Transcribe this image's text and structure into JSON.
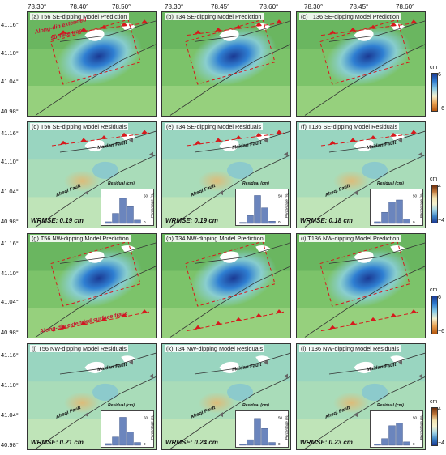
{
  "axes": {
    "lon_ticks": [
      "78.30°",
      "78.40°",
      "78.50°",
      "78.30°",
      "78.45°",
      "78.60°",
      "78.30°",
      "78.45°",
      "78.60°"
    ],
    "lat_ticks": [
      "41.16°",
      "41.10°",
      "41.04°",
      "40.98°"
    ]
  },
  "panels": [
    {
      "label": "(a) T56 SE-dipping Model Prediction"
    },
    {
      "label": "(b) T34 SE-dipping Model Prediction"
    },
    {
      "label": "(c) T136 SE-dipping Model Prediction"
    },
    {
      "label": "(d) T56 SE-dipping Model Residuals",
      "wrmse": "WRMSE: 0.19 cm"
    },
    {
      "label": "(e) T34 SE-dipping Model Residuals",
      "wrmse": "WRMSE: 0.19 cm"
    },
    {
      "label": "(f) T136 SE-dipping Model Residuals",
      "wrmse": "WRMSE: 0.18 cm"
    },
    {
      "label": "(g) T56 NW-dipping Model Prediction"
    },
    {
      "label": "(h) T34 NW-dipping Model Prediction"
    },
    {
      "label": "(i) T136 NW-dipping Model Prediction"
    },
    {
      "label": "(j) T56 NW-dipping Model Residuals",
      "wrmse": "WRMSE: 0.21 cm"
    },
    {
      "label": "(k) T34 NW-dipping Model Residuals",
      "wrmse": "WRMSE: 0.24 cm"
    },
    {
      "label": "(l) T136 NW-dipping Model Residuals",
      "wrmse": "WRMSE: 0.23 cm"
    }
  ],
  "annotations": {
    "along_dip_top": "Along-dip extended",
    "surface_trace_top": "surface trace",
    "along_dip_bottom": "Along-dip extended surface trace",
    "maidan_fault": "Maidan Fault",
    "aheqi_fault": "Aheqi Fault"
  },
  "histogram": {
    "xlabel": "Residual (cm)",
    "ylabel": "Percentage (%)",
    "ticks": [
      "−1",
      "−0.5",
      "0",
      "0.5",
      "1"
    ],
    "ytick": "50",
    "ytick0": "0"
  },
  "hist_data": [
    [
      3,
      18,
      45,
      30,
      6
    ],
    [
      2,
      14,
      50,
      28,
      4
    ],
    [
      3,
      20,
      38,
      42,
      8
    ],
    [
      3,
      15,
      50,
      24,
      5
    ],
    [
      2,
      10,
      48,
      30,
      5
    ],
    [
      2,
      12,
      35,
      40,
      6
    ]
  ],
  "colorbar": {
    "unit": "cm",
    "pred_max": "6",
    "pred_min": "−6",
    "res_max": "4",
    "res_min": "−4"
  },
  "colors": {
    "pred_blue": "#1f4fae",
    "terrain_green": "#7cc36a",
    "fault_red": "#d7191c"
  }
}
